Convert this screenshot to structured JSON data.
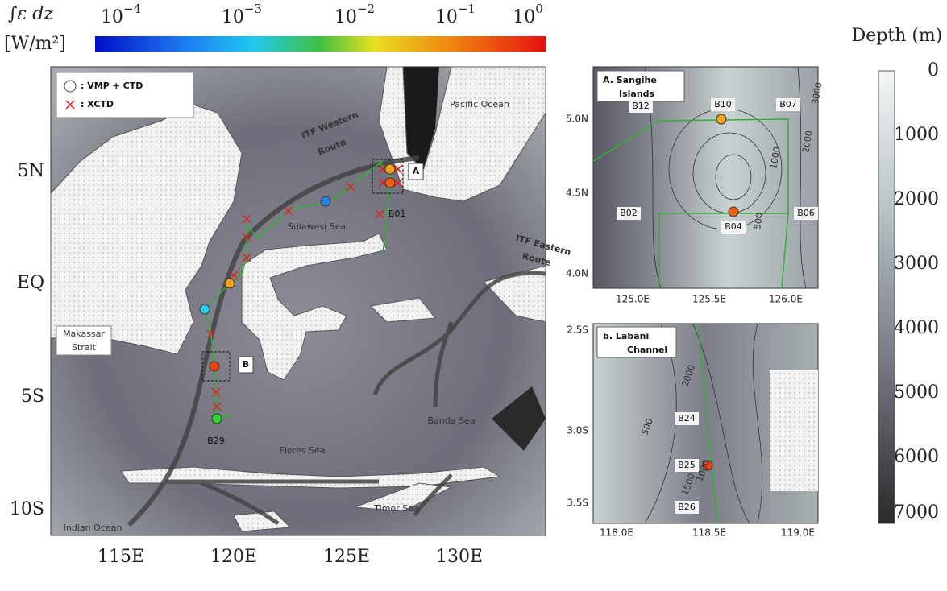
{
  "colorbar": {
    "symbol": "∫ε dz",
    "unit": "[W/m²]",
    "ticks": [
      {
        "base": "10",
        "exp": "−4"
      },
      {
        "base": "10",
        "exp": "−3"
      },
      {
        "base": "10",
        "exp": "−2"
      },
      {
        "base": "10",
        "exp": "−1"
      },
      {
        "base": "10",
        "exp": "0"
      }
    ]
  },
  "main_map": {
    "legend": [
      ": VMP + CTD",
      ": XCTD"
    ],
    "labels": {
      "pacific": "Pacific Ocean",
      "itf_western": [
        "ITF Western",
        "Route"
      ],
      "sulawesi": "Sulawesi Sea",
      "box_a": "A",
      "b01": "B01",
      "itf_eastern": [
        "ITF Eastern",
        "Route"
      ],
      "makassar": [
        "Makassar",
        "Strait"
      ],
      "box_b": "B",
      "b29": "B29",
      "banda": "Banda Sea",
      "flores": "Flores Sea",
      "timor": "Timor Sea",
      "indian": "Indian Ocean"
    },
    "yticks": [
      "5N",
      "EQ",
      "5S",
      "10S"
    ],
    "xticks": [
      "115E",
      "120E",
      "125E",
      "130E"
    ]
  },
  "inset_a": {
    "title": [
      "A. Sangihe",
      "Islands"
    ],
    "stations": [
      "B12",
      "B10",
      "B07",
      "B02",
      "B04",
      "B06"
    ],
    "contours": [
      "2000",
      "1000",
      "500",
      "3000"
    ],
    "yticks": [
      "5.0N",
      "4.5N",
      "4.0N"
    ],
    "xticks": [
      "125.0E",
      "125.5E",
      "126.0E"
    ]
  },
  "inset_b": {
    "title": [
      "b. Labani",
      "Channel"
    ],
    "stations": [
      "B24",
      "B25",
      "B26"
    ],
    "contours": [
      "2000",
      "500",
      "1000",
      "1500"
    ],
    "yticks": [
      "2.5S",
      "3.0S",
      "3.5S"
    ],
    "xticks": [
      "118.0E",
      "118.5E",
      "119.0E"
    ]
  },
  "depth_bar": {
    "title": "Depth (m)",
    "ticks": [
      0,
      1000,
      2000,
      3000,
      4000,
      5000,
      6000,
      7000
    ]
  }
}
